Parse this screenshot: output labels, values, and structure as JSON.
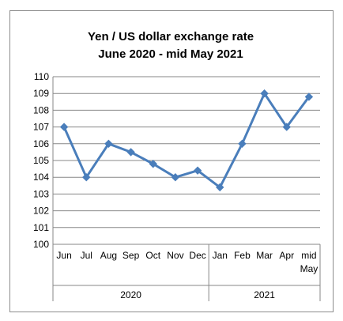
{
  "chart_data": {
    "type": "line",
    "title": "Yen / US dollar exchange rate",
    "subtitle": "June 2020 - mid May 2021",
    "categories": [
      [
        "Jun"
      ],
      [
        "Jul"
      ],
      [
        "Aug"
      ],
      [
        "Sep"
      ],
      [
        "Oct"
      ],
      [
        "Nov"
      ],
      [
        "Dec"
      ],
      [
        "Jan"
      ],
      [
        "Feb"
      ],
      [
        "Mar"
      ],
      [
        "Apr"
      ],
      [
        "mid",
        "May"
      ]
    ],
    "groups": [
      {
        "label": "2020",
        "start": 0,
        "end": 6
      },
      {
        "label": "2021",
        "start": 7,
        "end": 11
      }
    ],
    "series": [
      {
        "values": [
          107.0,
          104.0,
          106.0,
          105.5,
          104.8,
          104.0,
          104.4,
          103.4,
          106.0,
          109.0,
          107.0,
          108.8
        ]
      }
    ],
    "ylim": [
      100,
      110
    ],
    "yticks": [
      "100",
      "101",
      "102",
      "103",
      "104",
      "105",
      "106",
      "107",
      "108",
      "109",
      "110"
    ],
    "grid": true,
    "legend": "none",
    "line_color": "#4a7ebb"
  }
}
